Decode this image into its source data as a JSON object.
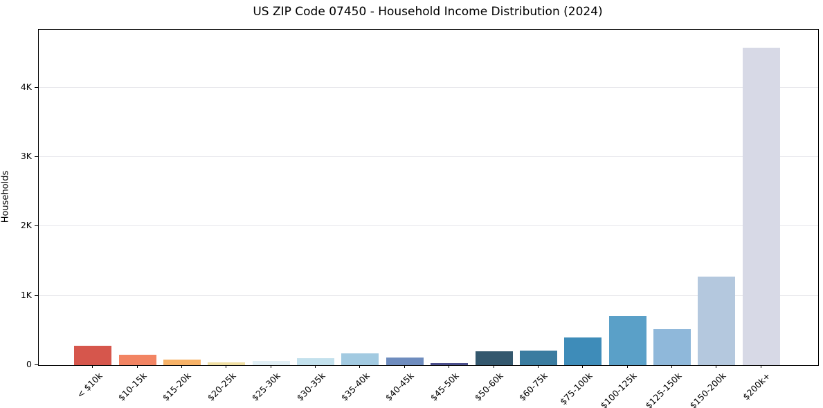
{
  "chart_data": {
    "type": "bar",
    "title": "US ZIP Code 07450 - Household Income Distribution (2024)",
    "xlabel": "",
    "ylabel": "Households",
    "ylim": [
      0,
      4836
    ],
    "grid": "horizontal-light",
    "legend": "none",
    "categories": [
      "< $10k",
      "$10-15k",
      "$15-20k",
      "$20-25k",
      "$25-30k",
      "$30-35k",
      "$35-40k",
      "$40-45k",
      "$45-50k",
      "$50-60k",
      "$60-75k",
      "$75-100k",
      "$100-125k",
      "$125-150k",
      "$150-200k",
      "$200k+"
    ],
    "values": [
      275,
      150,
      82,
      40,
      60,
      97,
      172,
      107,
      33,
      196,
      210,
      400,
      710,
      515,
      1275,
      4580
    ],
    "bar_colors": [
      "#d6564c",
      "#f28463",
      "#f7b267",
      "#f0dfa3",
      "#e1eff5",
      "#c3e1ed",
      "#a2cae1",
      "#6e8cbe",
      "#4b4f8c",
      "#34586e",
      "#3a7ca0",
      "#3e8cb9",
      "#5aa0c8",
      "#8fb8da",
      "#b4c8de",
      "#d7d9e6"
    ],
    "yticks": [
      {
        "value": 0,
        "label": "0"
      },
      {
        "value": 1000,
        "label": "1K"
      },
      {
        "value": 2000,
        "label": "2K"
      },
      {
        "value": 3000,
        "label": "3K"
      },
      {
        "value": 4000,
        "label": "4K"
      }
    ],
    "colors": {
      "background": "#ffffff",
      "spine": "#000000",
      "gridline": "#e8e8ec",
      "text": "#000000"
    }
  }
}
